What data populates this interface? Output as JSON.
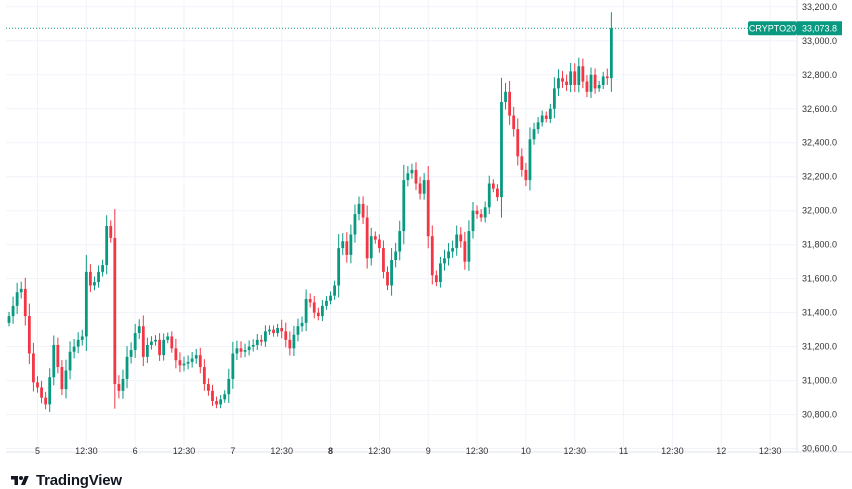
{
  "brand": {
    "name": "TradingView",
    "logo_icon": "tradingview-logo-icon"
  },
  "colors": {
    "up": "#089981",
    "down": "#f23645",
    "grid": "#f0f3fa",
    "axis_text": "#333333",
    "last_price": "#089981"
  },
  "chart_data": {
    "type": "candlestick",
    "symbol_label": "CRYPTO20",
    "last_price_label": "33,073.8",
    "last_price": 33073.8,
    "ylim": [
      30580,
      33240
    ],
    "y_ticks": [
      {
        "value": 33200,
        "label": "33,200.0"
      },
      {
        "value": 33000,
        "label": "33,000.0"
      },
      {
        "value": 32800,
        "label": "32,800.0"
      },
      {
        "value": 32600,
        "label": "32,600.0"
      },
      {
        "value": 32400,
        "label": "32,400.0"
      },
      {
        "value": 32200,
        "label": "32,200.0"
      },
      {
        "value": 32000,
        "label": "32,000.0"
      },
      {
        "value": 31800,
        "label": "31,800.0"
      },
      {
        "value": 31600,
        "label": "31,600.0"
      },
      {
        "value": 31400,
        "label": "31,400.0"
      },
      {
        "value": 31200,
        "label": "31,200.0"
      },
      {
        "value": 31000,
        "label": "31,000.0"
      },
      {
        "value": 30800,
        "label": "30,800.0"
      },
      {
        "value": 30600,
        "label": "30,600.0"
      }
    ],
    "x_ticks": [
      {
        "index": 7,
        "label": "5",
        "bold": false
      },
      {
        "index": 19,
        "label": "12:30",
        "bold": false
      },
      {
        "index": 31,
        "label": "6",
        "bold": false
      },
      {
        "index": 43,
        "label": "12:30",
        "bold": false
      },
      {
        "index": 55,
        "label": "7",
        "bold": false
      },
      {
        "index": 67,
        "label": "12:30",
        "bold": false
      },
      {
        "index": 79,
        "label": "8",
        "bold": true
      },
      {
        "index": 91,
        "label": "12:30",
        "bold": false
      },
      {
        "index": 103,
        "label": "9",
        "bold": false
      },
      {
        "index": 115,
        "label": "12:30",
        "bold": false
      },
      {
        "index": 127,
        "label": "10",
        "bold": false
      },
      {
        "index": 139,
        "label": "12:30",
        "bold": false
      },
      {
        "index": 151,
        "label": "11",
        "bold": false
      },
      {
        "index": 163,
        "label": "12:30",
        "bold": false
      },
      {
        "index": 175,
        "label": "12",
        "bold": false
      },
      {
        "index": 187,
        "label": "12:30",
        "bold": false
      }
    ],
    "close_series": [
      31380,
      31440,
      31520,
      31540,
      31380,
      31160,
      30990,
      30960,
      30900,
      30860,
      31020,
      31210,
      31080,
      30950,
      31060,
      31170,
      31200,
      31240,
      31260,
      31640,
      31560,
      31580,
      31640,
      31680,
      31910,
      31840,
      30980,
      30940,
      31010,
      31140,
      31180,
      31280,
      31320,
      31140,
      31210,
      31230,
      31240,
      31150,
      31240,
      31260,
      31190,
      31120,
      31090,
      31100,
      31110,
      31130,
      31150,
      31080,
      30980,
      30940,
      30880,
      30860,
      30890,
      30920,
      31010,
      31160,
      31190,
      31170,
      31180,
      31200,
      31210,
      31240,
      31230,
      31290,
      31300,
      31280,
      31310,
      31290,
      31240,
      31190,
      31270,
      31320,
      31340,
      31480,
      31460,
      31400,
      31380,
      31440,
      31470,
      31500,
      31560,
      31780,
      31820,
      31740,
      31860,
      31980,
      32040,
      31960,
      31720,
      31850,
      31830,
      31780,
      31640,
      31560,
      31710,
      31760,
      31880,
      32180,
      32220,
      32240,
      32160,
      32100,
      32180,
      31850,
      31620,
      31580,
      31690,
      31720,
      31760,
      31780,
      31860,
      31820,
      31700,
      31880,
      32000,
      31980,
      31960,
      32020,
      32160,
      32130,
      32080,
      32640,
      32700,
      32560,
      32480,
      32320,
      32240,
      32180,
      32420,
      32480,
      32520,
      32560,
      32540,
      32600,
      32720,
      32780,
      32760,
      32740,
      32820,
      32740,
      32850,
      32760,
      32700,
      32800,
      32720,
      32740,
      32790,
      32780,
      33073.8
    ]
  }
}
